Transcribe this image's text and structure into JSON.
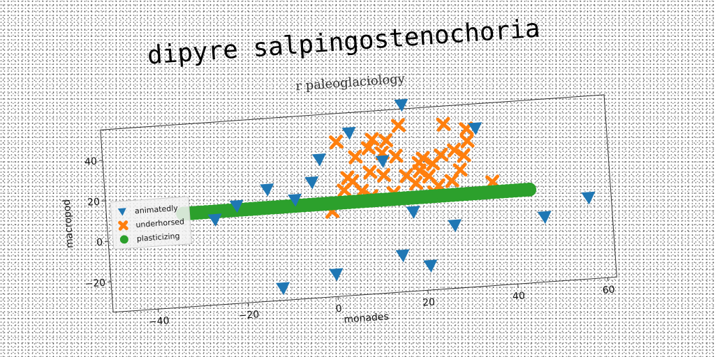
{
  "chart_data": {
    "type": "scatter",
    "title": "dipyre salpingostenochoria",
    "subtitle": "r paleoglaciology",
    "xlabel": "monades",
    "ylabel": "macropod",
    "xlim": [
      -50,
      62
    ],
    "ylim": [
      -35,
      55
    ],
    "xticks": [
      -40,
      -20,
      0,
      20,
      40,
      60
    ],
    "yticks": [
      -20,
      0,
      20,
      40
    ],
    "legend_position": "center-left",
    "grid": false,
    "series": [
      {
        "name": "animatedly",
        "marker": "triangle-down",
        "color": "#1f77b4",
        "points": [
          [
            17,
            57
          ],
          [
            5,
            45
          ],
          [
            33,
            43
          ],
          [
            -2,
            33
          ],
          [
            12,
            30
          ],
          [
            -4,
            22
          ],
          [
            -14,
            20
          ],
          [
            -21,
            13
          ],
          [
            -8,
            14
          ],
          [
            -26,
            7
          ],
          [
            18,
            4
          ],
          [
            57,
            5
          ],
          [
            47,
            -3
          ],
          [
            27,
            -4
          ],
          [
            15,
            -17
          ],
          [
            21,
            -23
          ],
          [
            0,
            -24
          ],
          [
            -12,
            -29
          ]
        ]
      },
      {
        "name": "underhorsed",
        "marker": "x",
        "color": "#ff7f0e",
        "points": [
          [
            2,
            41
          ],
          [
            10,
            41
          ],
          [
            13,
            40
          ],
          [
            9,
            37
          ],
          [
            16,
            47
          ],
          [
            26,
            46
          ],
          [
            31,
            43
          ],
          [
            31,
            37
          ],
          [
            25,
            31
          ],
          [
            28,
            33
          ],
          [
            20,
            28
          ],
          [
            30,
            30
          ],
          [
            6,
            33
          ],
          [
            12,
            34
          ],
          [
            15,
            32
          ],
          [
            23,
            27
          ],
          [
            21,
            30
          ],
          [
            29,
            23
          ],
          [
            4,
            23
          ],
          [
            9,
            25
          ],
          [
            12,
            23
          ],
          [
            17,
            22
          ],
          [
            20,
            24
          ],
          [
            22,
            21
          ],
          [
            19,
            18
          ],
          [
            3,
            17
          ],
          [
            7,
            16
          ],
          [
            14,
            14
          ],
          [
            24,
            16
          ],
          [
            27,
            18
          ],
          [
            36,
            16
          ],
          [
            5,
            21
          ],
          [
            9,
            13
          ],
          [
            0,
            7
          ],
          [
            23,
            13
          ]
        ]
      },
      {
        "name": "plasticizing",
        "marker": "circle",
        "color": "#2ca02c",
        "y": 11,
        "x_start": -33,
        "x_end": 44,
        "x_step": 1
      }
    ]
  }
}
